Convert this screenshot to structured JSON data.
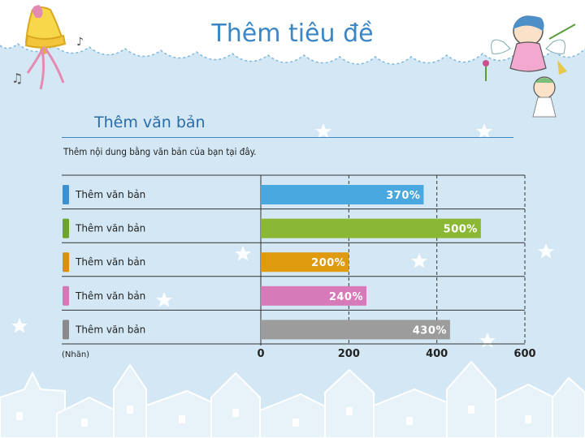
{
  "page": {
    "title": "Thêm tiêu đề",
    "subtitle": "Thêm văn bản",
    "body_text": "Thêm nội dung bằng văn bản của bạn tại đây."
  },
  "chart_data": {
    "type": "bar",
    "orientation": "horizontal",
    "categories": [
      "Thêm văn bản",
      "Thêm văn bản",
      "Thêm văn bản",
      "Thêm văn bản",
      "Thêm văn bản"
    ],
    "values": [
      370,
      500,
      200,
      240,
      430
    ],
    "value_labels": [
      "370%",
      "500%",
      "200%",
      "240%",
      "430%"
    ],
    "bar_colors": [
      "#4aa8e0",
      "#8ab834",
      "#e09a0e",
      "#d77ab9",
      "#9c9c9c"
    ],
    "marker_colors": [
      "#3c8fd0",
      "#6ea32c",
      "#d8900e",
      "#d27ab6",
      "#8a8a8a"
    ],
    "x_ticks": [
      "0",
      "200",
      "400",
      "600"
    ],
    "x_tick_values": [
      0,
      200,
      400,
      600
    ],
    "xlim": [
      0,
      600
    ],
    "unit_label": "(Nhãn)",
    "grid": true
  },
  "colors": {
    "background": "#d3e8f4",
    "title": "#3b86c4",
    "rule": "#3b86c4"
  }
}
